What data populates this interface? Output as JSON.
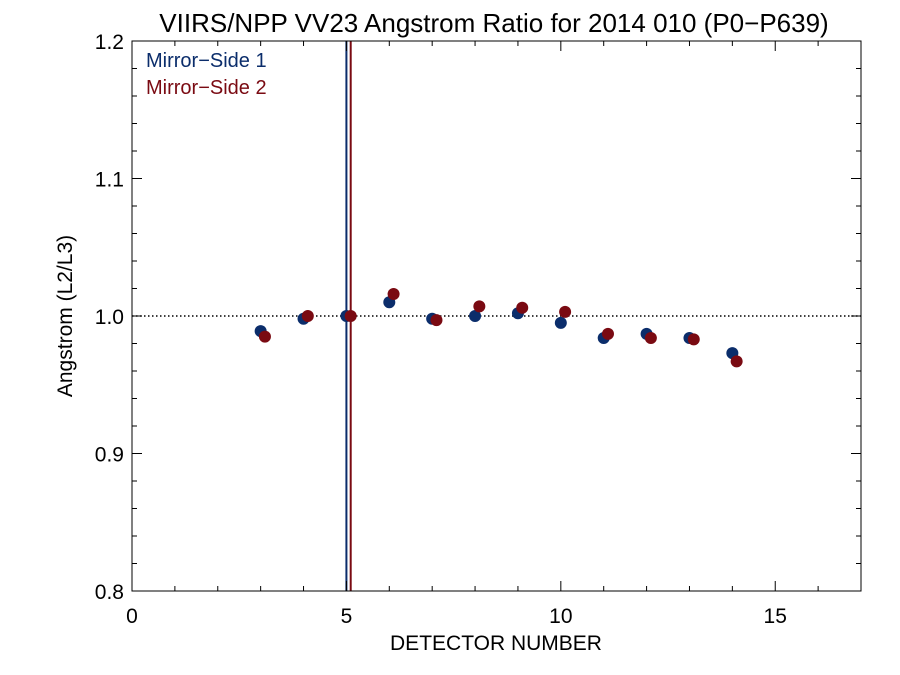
{
  "chart_data": {
    "type": "scatter",
    "title": "VIIRS/NPP VV23 Angstrom Ratio for 2014 010 (P0−P639)",
    "xlabel": "DETECTOR NUMBER",
    "ylabel": "Angstrom (L2/L3)",
    "xlim": [
      0,
      17
    ],
    "ylim": [
      0.8,
      1.2
    ],
    "x_ticks": [
      0,
      5,
      10,
      15
    ],
    "y_ticks": [
      0.8,
      0.9,
      1.0,
      1.1,
      1.2
    ],
    "x_tick_labels": [
      "0",
      "5",
      "10",
      "15"
    ],
    "y_tick_labels": [
      "0.8",
      "0.9",
      "1.0",
      "1.1",
      "1.2"
    ],
    "reference_line_y": 1.0,
    "vertical_lines": [
      {
        "x": 5.0,
        "color": "#0b2d6b"
      },
      {
        "x": 5.1,
        "color": "#7a0a12"
      }
    ],
    "legend_position": "top-left",
    "series": [
      {
        "name": "Mirror−Side 1",
        "color": "#0b2d6b",
        "x": [
          3,
          4,
          5,
          6,
          7,
          8,
          9,
          10,
          11,
          12,
          13,
          14
        ],
        "y": [
          0.989,
          0.998,
          1.0,
          1.01,
          0.998,
          1.0,
          1.002,
          0.995,
          0.984,
          0.987,
          0.984,
          0.973
        ]
      },
      {
        "name": "Mirror−Side 2",
        "color": "#7a0a12",
        "x": [
          3.1,
          4.1,
          5.1,
          6.1,
          7.1,
          8.1,
          9.1,
          10.1,
          11.1,
          12.1,
          13.1,
          14.1
        ],
        "y": [
          0.985,
          1.0,
          1.0,
          1.016,
          0.997,
          1.007,
          1.006,
          1.003,
          0.987,
          0.984,
          0.983,
          0.967
        ]
      }
    ]
  }
}
